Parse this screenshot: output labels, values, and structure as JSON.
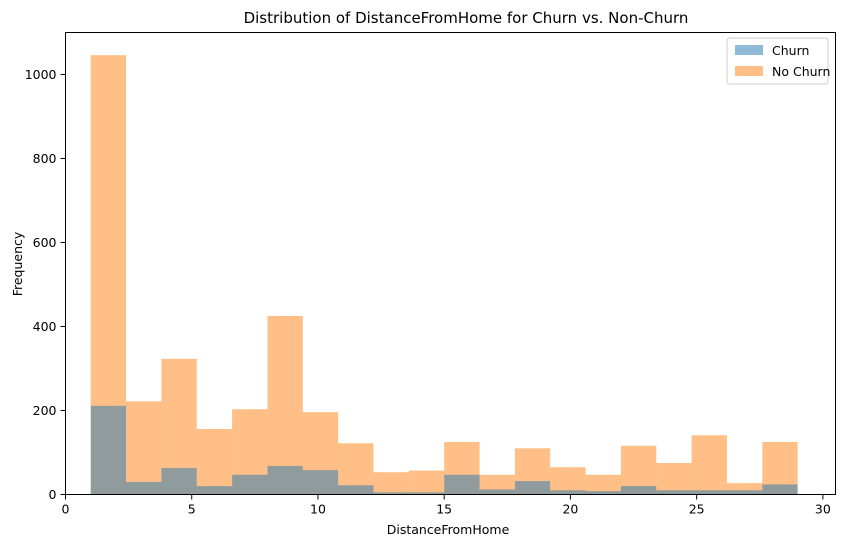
{
  "chart_data": {
    "type": "histogram",
    "title": "Distribution of DistanceFromHome for Churn vs. Non-Churn",
    "xlabel": "DistanceFromHome",
    "ylabel": "Frequency",
    "xlim": [
      0,
      30.5
    ],
    "ylim": [
      0,
      1100
    ],
    "xticks": [
      0,
      5,
      10,
      15,
      20,
      25,
      30
    ],
    "yticks": [
      0,
      200,
      400,
      600,
      800,
      1000
    ],
    "bin_edges": [
      1,
      2.4,
      3.8,
      5.2,
      6.6,
      8.0,
      9.4,
      10.8,
      12.2,
      13.6,
      15.0,
      16.4,
      17.8,
      19.2,
      20.6,
      22.0,
      23.4,
      24.8,
      26.2,
      27.6,
      29.0
    ],
    "legend_position": "top-right",
    "grid": false,
    "series": [
      {
        "name": "Churn",
        "color": "#1f77b4",
        "alpha": 0.5,
        "values": [
          211,
          30,
          63,
          20,
          47,
          68,
          58,
          22,
          5,
          5,
          47,
          12,
          32,
          10,
          8,
          20,
          10,
          10,
          10,
          24
        ]
      },
      {
        "name": "No Churn",
        "color": "#ff7f0e",
        "alpha": 0.5,
        "values": [
          1046,
          222,
          323,
          156,
          203,
          425,
          196,
          122,
          53,
          57,
          125,
          47,
          110,
          65,
          47,
          116,
          75,
          141,
          27,
          125
        ]
      }
    ]
  }
}
